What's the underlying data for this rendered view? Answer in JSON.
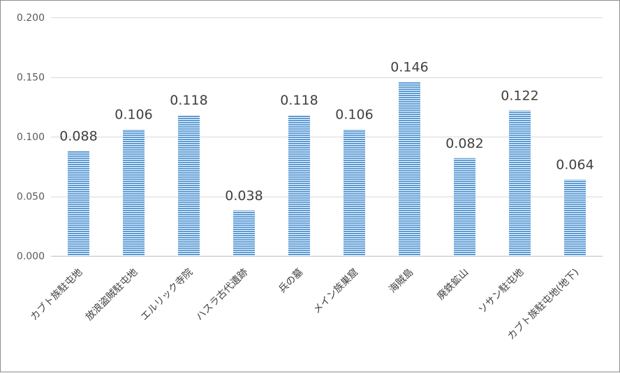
{
  "chart_data": {
    "type": "bar",
    "title": "",
    "xlabel": "",
    "ylabel": "",
    "categories": [
      "カブト族駐屯地",
      "放浪盗賊駐屯地",
      "エルリック寺院",
      "ハスラ古代遺跡",
      "兵の墓",
      "メイン族巣窟",
      "海賊島",
      "廃鉄鉱山",
      "ソサン駐屯地",
      "カブト族駐屯地(地下)"
    ],
    "values": [
      0.088,
      0.106,
      0.118,
      0.038,
      0.118,
      0.106,
      0.146,
      0.082,
      0.122,
      0.064
    ],
    "value_labels": [
      "0.088",
      "0.106",
      "0.118",
      "0.038",
      "0.118",
      "0.106",
      "0.146",
      "0.082",
      "0.122",
      "0.064"
    ],
    "ylim": [
      0,
      0.2
    ],
    "yticks": [
      0,
      0.05,
      0.1,
      0.15,
      0.2
    ],
    "ytick_labels": [
      "0.000",
      "0.050",
      "0.100",
      "0.150",
      "0.200"
    ],
    "grid": true,
    "legend": "none",
    "bar_color": "#5b9bd5",
    "bar_pattern": "horizontal-stripes"
  }
}
